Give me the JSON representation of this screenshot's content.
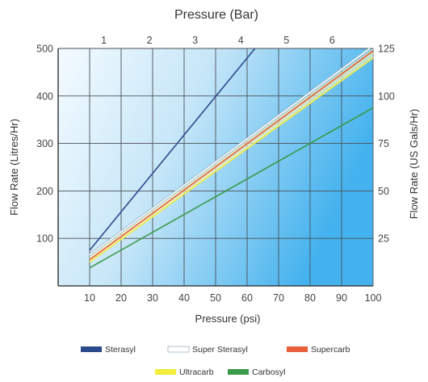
{
  "chart_data": {
    "type": "line",
    "top_title": "Pressure (Bar)",
    "xlabel": "Pressure (psi)",
    "ylabel": "Flow Rate (Litres/Hr)",
    "ylabel_right": "Flow Rate (US Gals/Hr)",
    "xlim": [
      0,
      100
    ],
    "ylim": [
      0,
      500
    ],
    "x_ticks": [
      10,
      20,
      30,
      40,
      50,
      60,
      70,
      80,
      90,
      100
    ],
    "y_ticks": [
      100,
      200,
      300,
      400,
      500
    ],
    "top_ticks": [
      {
        "label": "1",
        "value": 14.5
      },
      {
        "label": "2",
        "value": 29
      },
      {
        "label": "3",
        "value": 43.5
      },
      {
        "label": "4",
        "value": 58
      },
      {
        "label": "5",
        "value": 72.5
      },
      {
        "label": "6",
        "value": 87
      }
    ],
    "right_ticks": [
      {
        "label": "25",
        "value": 100
      },
      {
        "label": "50",
        "value": 200
      },
      {
        "label": "75",
        "value": 300
      },
      {
        "label": "100",
        "value": 400
      },
      {
        "label": "125",
        "value": 500
      }
    ],
    "grid": true,
    "legend_position": "bottom",
    "series": [
      {
        "name": "Sterasyl",
        "color": "#2b4a8c",
        "x": [
          10,
          62.5
        ],
        "y": [
          75,
          500
        ]
      },
      {
        "name": "Super Sterasyl",
        "color": "#ffffff",
        "x": [
          10,
          100
        ],
        "y": [
          65,
          505
        ]
      },
      {
        "name": "Supercarb",
        "color": "#e8603a",
        "x": [
          10,
          100
        ],
        "y": [
          55,
          495
        ]
      },
      {
        "name": "Ultracarb",
        "color": "#f2ec3a",
        "x": [
          10,
          100
        ],
        "y": [
          50,
          480
        ]
      },
      {
        "name": "Carbosyl",
        "color": "#3a9a4a",
        "x": [
          10,
          100
        ],
        "y": [
          38,
          375
        ]
      }
    ]
  }
}
